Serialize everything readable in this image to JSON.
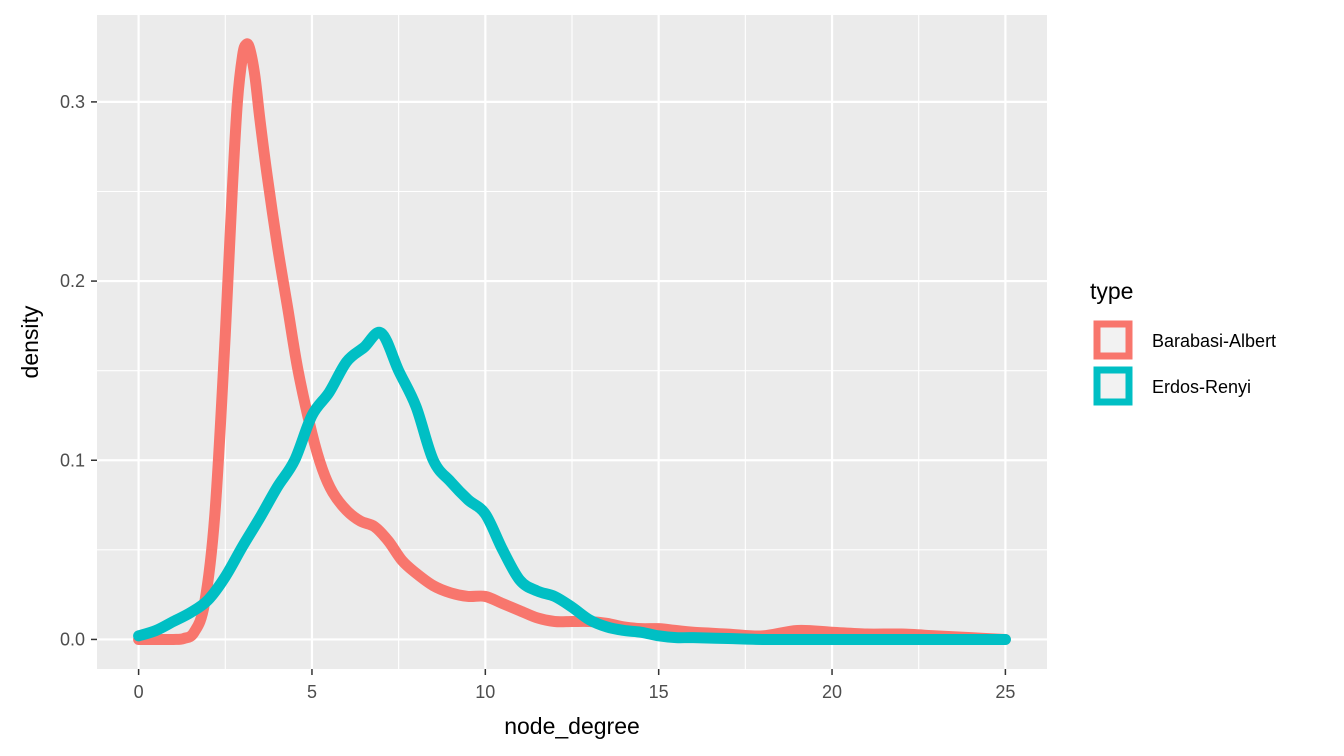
{
  "chart_data": {
    "type": "line",
    "xlabel": "node_degree",
    "ylabel": "density",
    "xlim": [
      -1.2,
      26.2
    ],
    "ylim": [
      -0.0165,
      0.3485
    ],
    "x_ticks": [
      0,
      5,
      10,
      15,
      20,
      25
    ],
    "x_tick_labels": [
      "0",
      "5",
      "10",
      "15",
      "20",
      "25"
    ],
    "y_ticks": [
      0.0,
      0.1,
      0.2,
      0.3
    ],
    "y_tick_labels": [
      "0.0",
      "0.1",
      "0.2",
      "0.3"
    ],
    "grid": true,
    "legend": {
      "title": "type",
      "position": "right"
    },
    "series": [
      {
        "name": "Barabasi-Albert",
        "color": "#F8766D",
        "points": [
          [
            0,
            0.0
          ],
          [
            0.5,
            0.0
          ],
          [
            1.0,
            0.0
          ],
          [
            1.3,
            0.0005
          ],
          [
            1.6,
            0.004
          ],
          [
            1.9,
            0.02
          ],
          [
            2.2,
            0.07
          ],
          [
            2.5,
            0.17
          ],
          [
            2.7,
            0.25
          ],
          [
            2.85,
            0.3
          ],
          [
            3.0,
            0.326
          ],
          [
            3.1,
            0.332
          ],
          [
            3.2,
            0.33
          ],
          [
            3.35,
            0.315
          ],
          [
            3.5,
            0.29
          ],
          [
            3.7,
            0.26
          ],
          [
            4.0,
            0.22
          ],
          [
            4.3,
            0.185
          ],
          [
            4.6,
            0.15
          ],
          [
            5.0,
            0.115
          ],
          [
            5.3,
            0.095
          ],
          [
            5.6,
            0.082
          ],
          [
            6.0,
            0.072
          ],
          [
            6.4,
            0.066
          ],
          [
            6.8,
            0.063
          ],
          [
            7.2,
            0.055
          ],
          [
            7.6,
            0.044
          ],
          [
            8.0,
            0.037
          ],
          [
            8.5,
            0.03
          ],
          [
            9.0,
            0.026
          ],
          [
            9.5,
            0.024
          ],
          [
            10.0,
            0.024
          ],
          [
            10.5,
            0.02
          ],
          [
            11.0,
            0.016
          ],
          [
            11.5,
            0.012
          ],
          [
            12.0,
            0.01
          ],
          [
            12.5,
            0.01
          ],
          [
            13.0,
            0.01
          ],
          [
            13.5,
            0.009
          ],
          [
            14.0,
            0.007
          ],
          [
            14.5,
            0.006
          ],
          [
            15.0,
            0.006
          ],
          [
            15.5,
            0.005
          ],
          [
            16.0,
            0.004
          ],
          [
            17.0,
            0.003
          ],
          [
            18.0,
            0.002
          ],
          [
            19.0,
            0.005
          ],
          [
            20.0,
            0.004
          ],
          [
            21.0,
            0.003
          ],
          [
            22.0,
            0.003
          ],
          [
            23.0,
            0.002
          ],
          [
            24.0,
            0.001
          ],
          [
            25.0,
            0.0
          ]
        ]
      },
      {
        "name": "Erdos-Renyi",
        "color": "#00BFC4",
        "points": [
          [
            0,
            0.002
          ],
          [
            0.5,
            0.005
          ],
          [
            1.0,
            0.01
          ],
          [
            1.5,
            0.015
          ],
          [
            2.0,
            0.022
          ],
          [
            2.5,
            0.035
          ],
          [
            3.0,
            0.052
          ],
          [
            3.5,
            0.068
          ],
          [
            4.0,
            0.085
          ],
          [
            4.5,
            0.1
          ],
          [
            5.0,
            0.125
          ],
          [
            5.5,
            0.138
          ],
          [
            6.0,
            0.155
          ],
          [
            6.5,
            0.163
          ],
          [
            7.0,
            0.171
          ],
          [
            7.5,
            0.15
          ],
          [
            8.0,
            0.13
          ],
          [
            8.5,
            0.1
          ],
          [
            9.0,
            0.088
          ],
          [
            9.5,
            0.078
          ],
          [
            10.0,
            0.07
          ],
          [
            10.5,
            0.05
          ],
          [
            11.0,
            0.033
          ],
          [
            11.5,
            0.027
          ],
          [
            12.0,
            0.024
          ],
          [
            12.5,
            0.018
          ],
          [
            13.0,
            0.011
          ],
          [
            13.5,
            0.007
          ],
          [
            14.0,
            0.005
          ],
          [
            14.5,
            0.004
          ],
          [
            15.0,
            0.002
          ],
          [
            15.5,
            0.001
          ],
          [
            16.0,
            0.001
          ],
          [
            17.0,
            0.0005
          ],
          [
            18.0,
            0.0
          ],
          [
            19.0,
            0.0
          ],
          [
            20.0,
            0.0
          ],
          [
            21.0,
            0.0
          ],
          [
            22.0,
            0.0
          ],
          [
            23.0,
            0.0
          ],
          [
            24.0,
            0.0
          ],
          [
            25.0,
            0.0
          ]
        ]
      }
    ]
  }
}
